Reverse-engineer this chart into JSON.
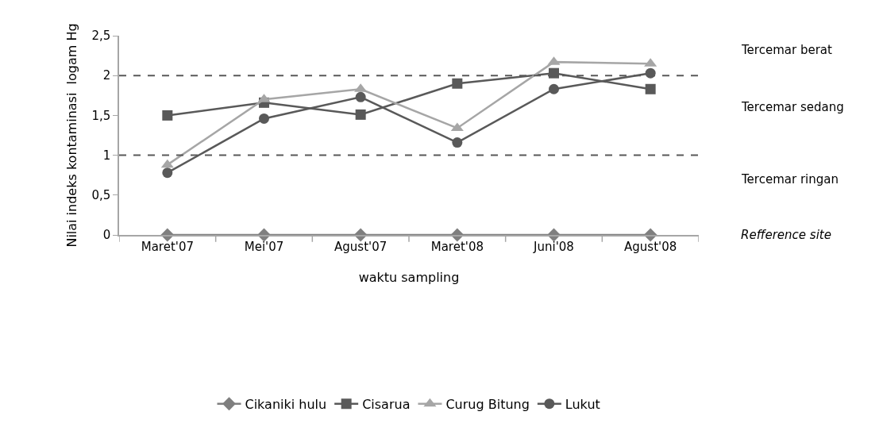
{
  "chart_data": {
    "type": "line",
    "xlabel": "waktu sampling",
    "ylabel": "Nilai indeks kontaminasi  logam Hg",
    "categories": [
      "Maret'07",
      "Mei'07",
      "Agust'07",
      "Maret'08",
      "Juni'08",
      "Agust'08"
    ],
    "series": [
      {
        "name": "Cikaniki hulu",
        "color": "#7f7f7f",
        "marker": "diamond",
        "values": [
          0,
          0,
          0,
          0,
          0,
          0
        ]
      },
      {
        "name": "Cisarua",
        "color": "#595959",
        "marker": "square",
        "values": [
          1.5,
          1.66,
          1.51,
          1.9,
          2.03,
          1.83
        ]
      },
      {
        "name": "Curug Bitung",
        "color": "#a6a6a6",
        "marker": "triangle",
        "values": [
          0.88,
          1.7,
          1.83,
          1.34,
          2.17,
          2.15
        ]
      },
      {
        "name": "Lukut",
        "color": "#595959",
        "marker": "circle",
        "values": [
          0.78,
          1.46,
          1.73,
          1.16,
          1.83,
          2.03
        ]
      }
    ],
    "ylim": [
      0,
      2.5
    ],
    "yticks": [
      0,
      {
        "value": 0.5,
        "label": "0,5"
      },
      1,
      {
        "value": 1.5,
        "label": "1,5"
      },
      2,
      {
        "value": 2.5,
        "label": "2,5"
      }
    ],
    "ref_lines": [
      {
        "axis": "y",
        "value": 2,
        "color": "#595959",
        "line_style": "dashed"
      },
      {
        "axis": "y",
        "value": 1,
        "color": "#595959",
        "line_style": "dashed"
      }
    ],
    "annotations": [
      "Tercemar berat",
      "Tercemar sedang",
      "Tercemar ringan",
      "Refference site"
    ],
    "legend": "bottom",
    "line_style": "solid"
  }
}
